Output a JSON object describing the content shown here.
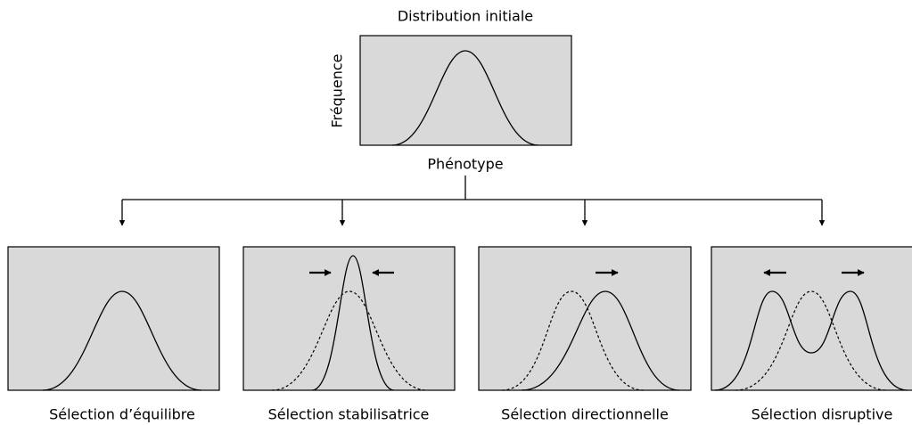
{
  "title": "Distribution initiale",
  "y_label": "Fréquence",
  "x_label": "Phénotype",
  "panels": [
    {
      "label": "Sélection d’équilibre"
    },
    {
      "label": "Sélection stabilisatrice"
    },
    {
      "label": "Sélection directionnelle"
    },
    {
      "label": "Sélection disruptive"
    }
  ]
}
